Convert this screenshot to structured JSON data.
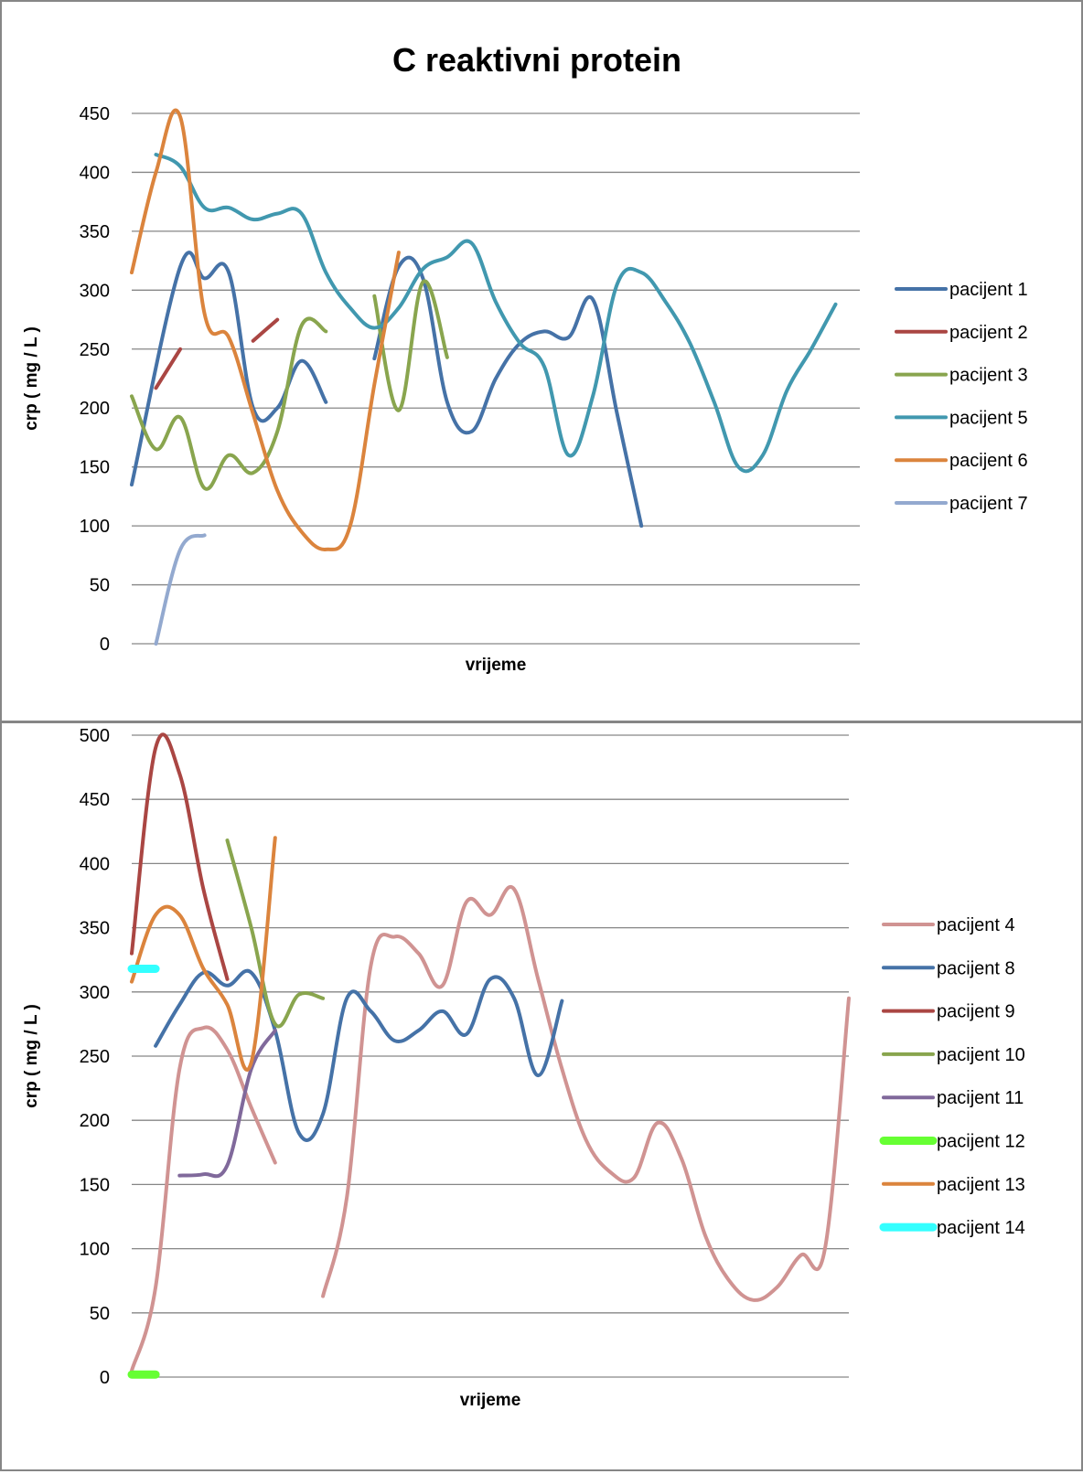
{
  "chart_data": [
    {
      "type": "line",
      "title": "C reaktivni protein",
      "xlabel": "vrijeme",
      "ylabel": "crp ( mg / L )",
      "ylim": [
        0,
        450
      ],
      "yticks": [
        0,
        50,
        100,
        150,
        200,
        250,
        300,
        350,
        400,
        450
      ],
      "xlim": [
        0,
        30
      ],
      "grid": true,
      "legend": "right",
      "series": [
        {
          "name": "pacijent 1",
          "color": "#4572A7",
          "width": 4,
          "x": [
            0,
            2,
            3,
            4,
            5,
            6,
            7,
            8
          ],
          "y": [
            135,
            320,
            310,
            315,
            200,
            200,
            240,
            205
          ]
        },
        {
          "name": "pacijent 1",
          "color": "#4572A7",
          "width": 4,
          "legend": false,
          "x": [
            10,
            11,
            12,
            13,
            14,
            15,
            16,
            17,
            18,
            19,
            20,
            21
          ],
          "y": [
            242,
            320,
            310,
            205,
            180,
            225,
            255,
            265,
            260,
            292,
            195,
            100
          ]
        },
        {
          "name": "pacijent 2",
          "color": "#AA4643",
          "width": 4,
          "x": [
            1,
            2
          ],
          "y": [
            217,
            250
          ]
        },
        {
          "name": "pacijent 2",
          "color": "#AA4643",
          "width": 4,
          "legend": false,
          "x": [
            5,
            6
          ],
          "y": [
            257,
            275
          ]
        },
        {
          "name": "pacijent 3",
          "color": "#89A54E",
          "width": 4,
          "x": [
            0,
            1,
            2,
            3,
            4,
            5,
            6,
            7,
            8
          ],
          "y": [
            210,
            165,
            192,
            132,
            160,
            145,
            180,
            270,
            265
          ]
        },
        {
          "name": "pacijent 3",
          "color": "#89A54E",
          "width": 4,
          "legend": false,
          "x": [
            10,
            11,
            12,
            13
          ],
          "y": [
            295,
            198,
            307,
            243
          ]
        },
        {
          "name": "pacijent 5",
          "color": "#4198AF",
          "width": 4,
          "x": [
            1,
            2,
            3,
            4,
            5,
            6,
            7,
            8,
            9,
            10,
            11,
            12,
            13,
            14,
            15,
            16,
            17,
            18,
            19,
            20,
            21,
            22,
            23,
            24,
            25,
            26,
            27,
            28,
            29
          ],
          "y": [
            415,
            405,
            370,
            370,
            360,
            365,
            365,
            315,
            285,
            268,
            285,
            318,
            328,
            340,
            290,
            255,
            235,
            160,
            210,
            305,
            315,
            290,
            255,
            205,
            150,
            160,
            215,
            250,
            288
          ]
        },
        {
          "name": "pacijent 6",
          "color": "#DB843D",
          "width": 4,
          "x": [
            0,
            1,
            2,
            3,
            4,
            5,
            6,
            7,
            8,
            9,
            10,
            11
          ],
          "y": [
            315,
            400,
            447,
            280,
            260,
            195,
            130,
            95,
            80,
            100,
            220,
            332
          ]
        },
        {
          "name": "pacijent 7",
          "color": "#93A9CF",
          "width": 4,
          "x": [
            1,
            2,
            3
          ],
          "y": [
            0,
            80,
            92
          ]
        }
      ]
    },
    {
      "type": "line",
      "title": "",
      "xlabel": "vrijeme",
      "ylabel": "crp ( mg / L )",
      "ylim": [
        0,
        500
      ],
      "yticks": [
        0,
        50,
        100,
        150,
        200,
        250,
        300,
        350,
        400,
        450,
        500
      ],
      "xlim": [
        0,
        30
      ],
      "grid": true,
      "legend": "right",
      "series": [
        {
          "name": "pacijent 4",
          "color": "#D09392",
          "width": 4,
          "x": [
            0,
            1,
            2,
            3,
            4,
            5,
            6
          ],
          "y": [
            5,
            70,
            240,
            272,
            255,
            210,
            167
          ]
        },
        {
          "name": "pacijent 4",
          "color": "#D09392",
          "width": 4,
          "legend": false,
          "x": [
            8,
            9,
            10,
            11,
            12,
            13,
            14,
            15,
            16,
            17,
            18,
            19,
            20,
            21,
            22,
            23,
            24,
            25,
            26,
            27,
            28,
            29,
            30
          ],
          "y": [
            63,
            140,
            320,
            343,
            330,
            305,
            370,
            360,
            380,
            310,
            240,
            185,
            160,
            155,
            198,
            170,
            110,
            75,
            60,
            70,
            95,
            100,
            295
          ]
        },
        {
          "name": "pacijent 8",
          "color": "#4572A7",
          "width": 4,
          "x": [
            1,
            2,
            3,
            4,
            5,
            6,
            7,
            8,
            9,
            10,
            11,
            12,
            13,
            14,
            15,
            16,
            17,
            18
          ],
          "y": [
            258,
            290,
            315,
            305,
            315,
            270,
            190,
            205,
            295,
            285,
            262,
            270,
            285,
            267,
            310,
            295,
            235,
            293
          ]
        },
        {
          "name": "pacijent 9",
          "color": "#AA4643",
          "width": 4,
          "x": [
            0,
            1,
            2,
            3,
            4
          ],
          "y": [
            330,
            490,
            470,
            380,
            310
          ]
        },
        {
          "name": "pacijent 10",
          "color": "#89A54E",
          "width": 4,
          "x": [
            4,
            5,
            6,
            7,
            8
          ],
          "y": [
            418,
            350,
            275,
            298,
            295
          ]
        },
        {
          "name": "pacijent 11",
          "color": "#80699B",
          "width": 4,
          "x": [
            2,
            3,
            4,
            5,
            6
          ],
          "y": [
            157,
            158,
            165,
            240,
            270
          ]
        },
        {
          "name": "pacijent 12",
          "color": "#66FF33",
          "width": 9,
          "x": [
            0,
            1
          ],
          "y": [
            2,
            2
          ]
        },
        {
          "name": "pacijent 13",
          "color": "#DB843D",
          "width": 4,
          "x": [
            0,
            1,
            2,
            3,
            4,
            5,
            6
          ],
          "y": [
            308,
            360,
            360,
            318,
            290,
            245,
            420
          ]
        },
        {
          "name": "pacijent 14",
          "color": "#33FFFF",
          "width": 9,
          "x": [
            0,
            1
          ],
          "y": [
            318,
            318
          ]
        }
      ]
    }
  ]
}
